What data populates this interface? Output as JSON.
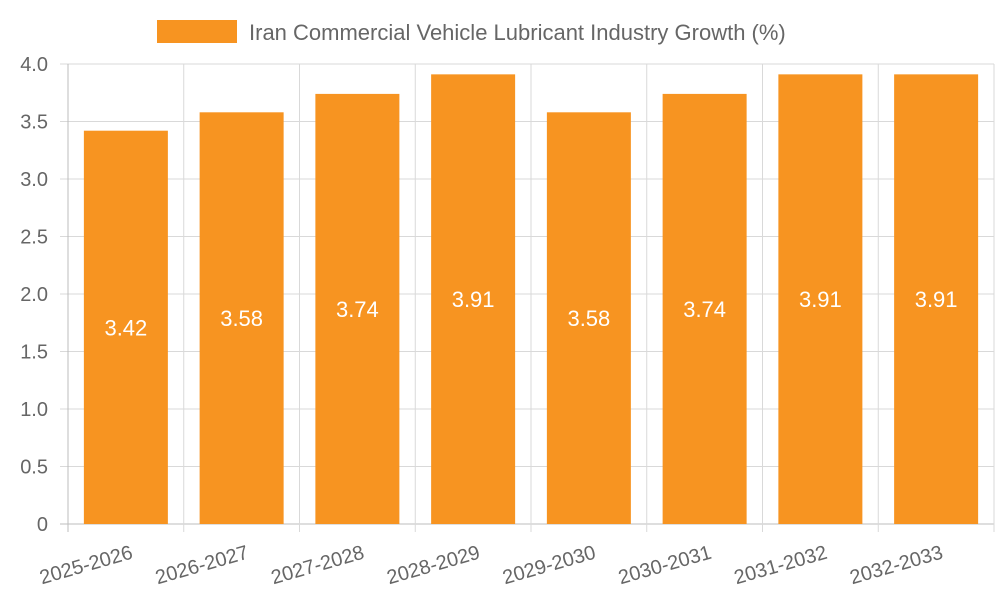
{
  "chart_data": {
    "type": "bar",
    "categories": [
      "2025-2026",
      "2026-2027",
      "2027-2028",
      "2028-2029",
      "2029-2030",
      "2030-2031",
      "2031-2032",
      "2032-2033"
    ],
    "series": [
      {
        "name": "Iran Commercial Vehicle Lubricant Industry Growth (%)",
        "values": [
          3.42,
          3.58,
          3.74,
          3.91,
          3.58,
          3.74,
          3.91,
          3.91
        ]
      }
    ],
    "data_labels": [
      "3.42",
      "3.58",
      "3.74",
      "3.91",
      "3.58",
      "3.74",
      "3.91",
      "3.91"
    ],
    "y_ticks": [
      "0",
      "0.5",
      "1.0",
      "1.5",
      "2.0",
      "2.5",
      "3.0",
      "3.5",
      "4.0"
    ],
    "ylim": [
      0,
      4
    ],
    "grid": true,
    "legend_position": "top-center",
    "bar_color": "#f79421"
  }
}
